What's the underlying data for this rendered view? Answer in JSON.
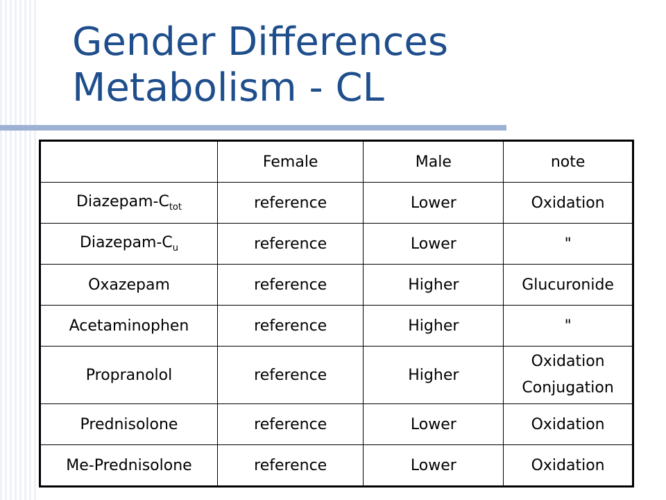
{
  "slide": {
    "title_line1": "Gender Differences",
    "title_line2": "Metabolism - CL"
  },
  "table": {
    "headers": [
      "",
      "Female",
      "Male",
      "note"
    ],
    "rows": [
      {
        "drug": "Diazepam-C",
        "drug_sub": "tot",
        "female": "reference",
        "male": "Lower",
        "note": "Oxidation"
      },
      {
        "drug": "Diazepam-C",
        "drug_sub": "u",
        "female": "reference",
        "male": "Lower",
        "note": "\""
      },
      {
        "drug": "Oxazepam",
        "female": "reference",
        "male": "Higher",
        "note": "Glucuronide"
      },
      {
        "drug": "Acetaminophen",
        "female": "reference",
        "male": "Higher",
        "note": "\""
      },
      {
        "drug": "Propranolol",
        "female": "reference",
        "male": "Higher",
        "note_lines": [
          "Oxidation",
          "Conjugation"
        ]
      },
      {
        "drug": "Prednisolone",
        "female": "reference",
        "male": "Lower",
        "note": "Oxidation"
      },
      {
        "drug": "Me-Prednisolone",
        "female": "reference",
        "male": "Lower",
        "note": "Oxidation"
      }
    ]
  },
  "colors": {
    "title": "#1f4e8c",
    "rule": "#9db1d3",
    "stripes": "#eef1f7"
  }
}
